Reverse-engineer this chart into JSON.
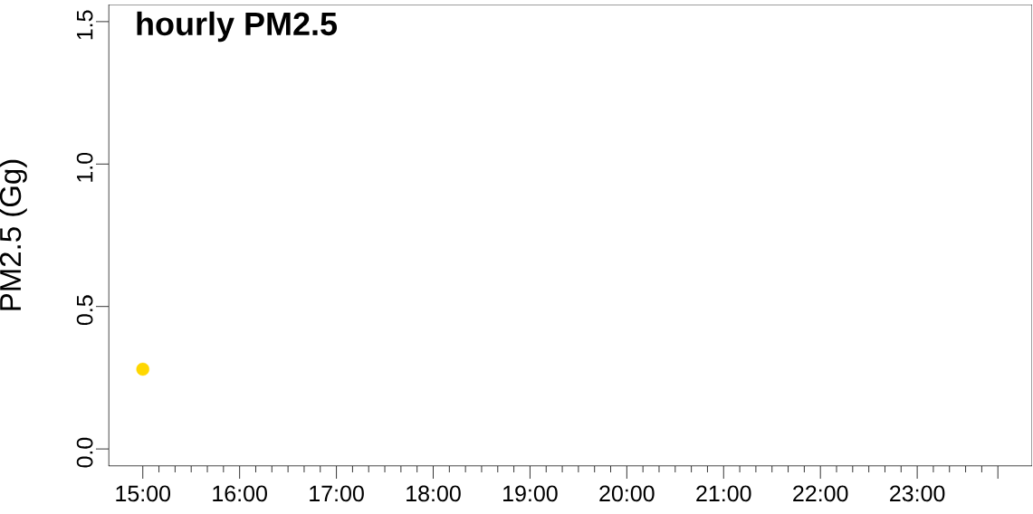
{
  "chart_data": {
    "type": "scatter",
    "title": "hourly PM2.5",
    "ylabel": "PM2.5 (Gg)",
    "x": [
      15
    ],
    "values": [
      0.28
    ],
    "color": "#ffd700",
    "marker": "circle",
    "xlim": [
      14.647,
      24.187
    ],
    "ylim": [
      -0.06,
      1.56
    ],
    "xticks": [
      {
        "value": 15,
        "label": "15:00"
      },
      {
        "value": 16,
        "label": "16:00"
      },
      {
        "value": 17,
        "label": "17:00"
      },
      {
        "value": 18,
        "label": "18:00"
      },
      {
        "value": 19,
        "label": "19:00"
      },
      {
        "value": 20,
        "label": "20:00"
      },
      {
        "value": 21,
        "label": "21:00"
      },
      {
        "value": 22,
        "label": "22:00"
      },
      {
        "value": 23,
        "label": "23:00"
      },
      {
        "value": 23.8333,
        "label": null
      }
    ],
    "yticks": [
      {
        "value": 0,
        "label": "0.0"
      },
      0.5,
      {
        "value": 1,
        "label": "1.0"
      },
      1.5
    ]
  }
}
